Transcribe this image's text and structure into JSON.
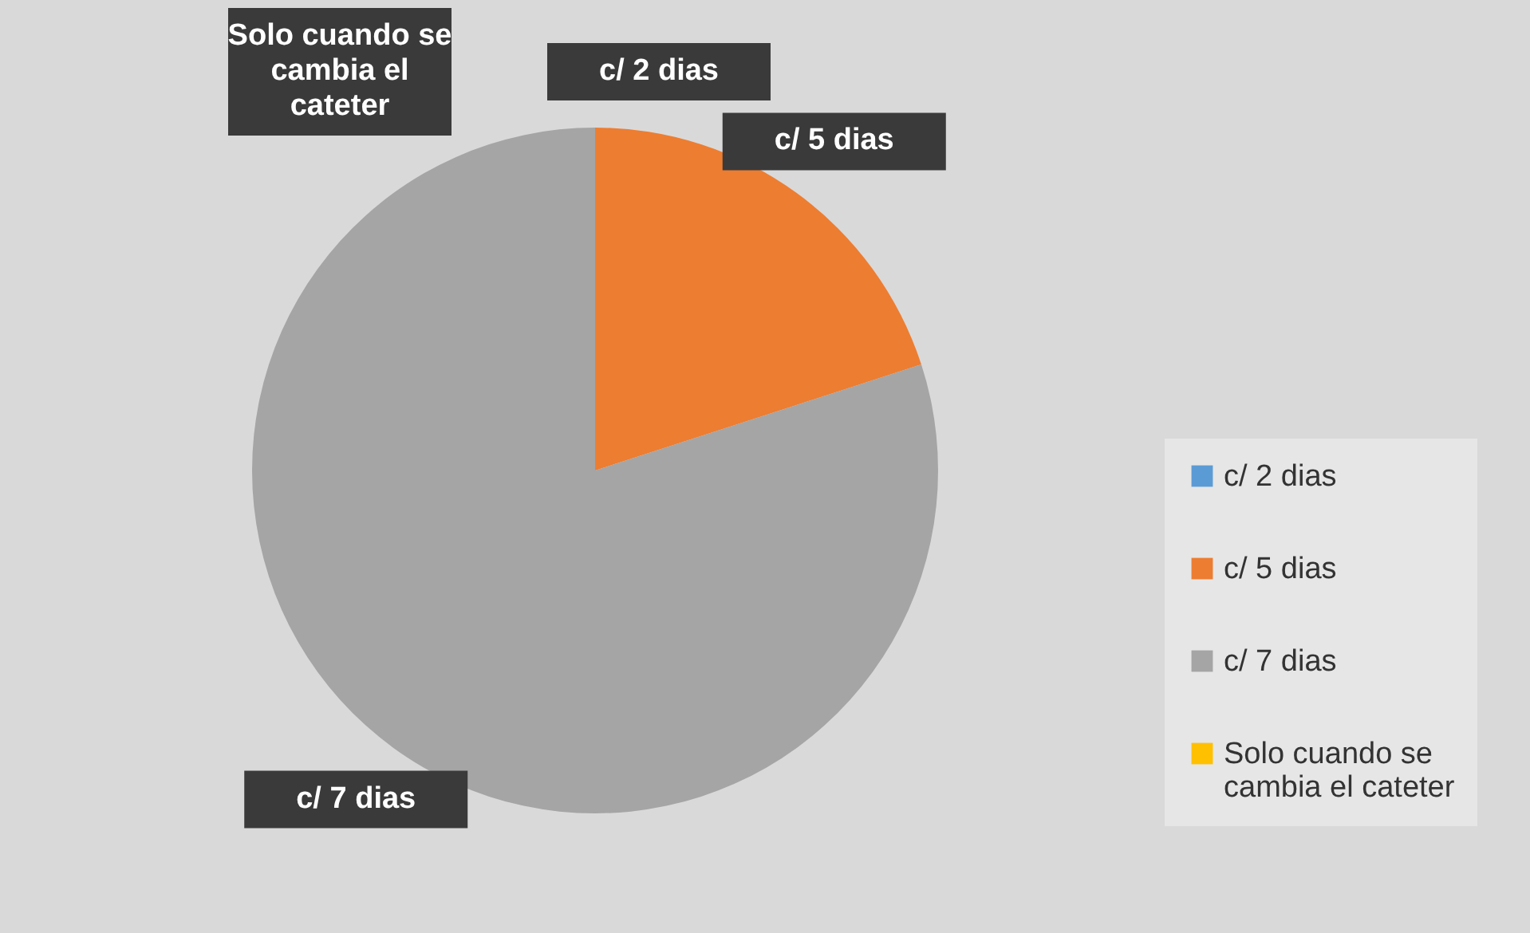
{
  "chart_data": {
    "type": "pie",
    "categories": [
      "c/ 2 dias",
      "c/ 5 dias",
      "c/ 7 dias",
      "Solo cuando se cambia el cateter"
    ],
    "values": [
      0,
      20,
      80,
      0
    ],
    "colors": [
      "#5b9bd5",
      "#ed7d31",
      "#a5a5a5",
      "#ffc000"
    ],
    "legend": "right"
  }
}
